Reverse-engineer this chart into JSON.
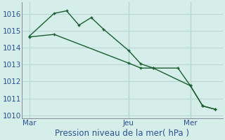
{
  "xlabel": "Pression niveau de la mer( hPa )",
  "bg_color": "#d6eeea",
  "grid_color": "#b8d8d4",
  "line_color": "#1a5c30",
  "ylim": [
    1009.8,
    1016.7
  ],
  "yticks": [
    1010,
    1011,
    1012,
    1013,
    1014,
    1015,
    1016
  ],
  "xtick_labels": [
    "Mar",
    "Jeu",
    "Mer"
  ],
  "xtick_positions": [
    0.0,
    0.5333,
    0.8667
  ],
  "vline_positions": [
    0.5333,
    0.8667
  ],
  "series1_x": [
    0.0,
    0.133,
    0.2,
    0.267,
    0.333,
    0.4,
    0.5333,
    0.6,
    0.667,
    0.8,
    0.8667,
    0.933,
    1.0
  ],
  "series1_y": [
    1014.7,
    1016.05,
    1016.2,
    1015.35,
    1015.8,
    1015.1,
    1013.85,
    1013.05,
    1012.8,
    1012.8,
    1011.75,
    1010.55,
    1010.35
  ],
  "series2_x": [
    0.0,
    0.133,
    0.5333,
    0.6,
    0.667,
    0.8667,
    0.933,
    1.0
  ],
  "series2_y": [
    1014.65,
    1014.8,
    1013.1,
    1012.8,
    1012.8,
    1011.75,
    1010.55,
    1010.35
  ],
  "marker_size": 3.5,
  "linewidth": 1.0,
  "xlabel_color": "#2a5090",
  "xlabel_fontsize": 8.5,
  "tick_fontsize": 7.5,
  "tick_color": "#2a5090"
}
